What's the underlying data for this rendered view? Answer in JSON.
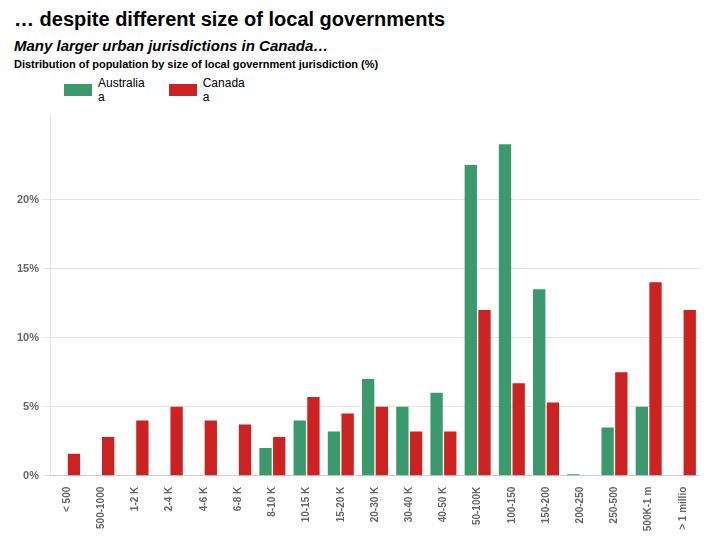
{
  "chart_data": {
    "type": "bar",
    "title": "… despite different size of local governments",
    "subtitle": [
      "Many larger urban jurisdictions in Canada…",
      "Distribution of population by size of local government jurisdiction (%)"
    ],
    "categories": [
      "< 500",
      "500-1000",
      "1-2 K",
      "2-4 K",
      "4-6 K",
      "6-8 K",
      "8-10 K",
      "10-15 K",
      "15-20 K",
      "20-30 K",
      "30-40 K",
      "40-50 K",
      "50-100K",
      "100-150",
      "150-200",
      "200-250",
      "250-500",
      "500K-1 m",
      "> 1 millio"
    ],
    "series": [
      {
        "name": "Australia\na",
        "color": "#3a9a6e",
        "values": [
          0.0,
          0.0,
          0.0,
          0.0,
          0.0,
          0.0,
          2.0,
          4.0,
          3.2,
          7.0,
          5.0,
          6.0,
          22.5,
          24.0,
          13.5,
          0.1,
          3.5,
          5.0,
          0.0
        ]
      },
      {
        "name": "Canada\na",
        "color": "#cc2222",
        "values": [
          1.6,
          2.8,
          4.0,
          5.0,
          4.0,
          3.7,
          2.8,
          5.7,
          4.5,
          5.0,
          3.2,
          3.2,
          12.0,
          6.7,
          5.3,
          0.0,
          7.5,
          14.0,
          12.0
        ]
      }
    ],
    "ylim": [
      0,
      26
    ],
    "yticks": [
      {
        "value": 0,
        "label": "0%"
      },
      {
        "value": 5,
        "label": "5%"
      },
      {
        "value": 10,
        "label": "10%"
      },
      {
        "value": 15,
        "label": "15%"
      },
      {
        "value": 20,
        "label": "20%"
      }
    ],
    "grid": true,
    "legend": "upper left"
  }
}
